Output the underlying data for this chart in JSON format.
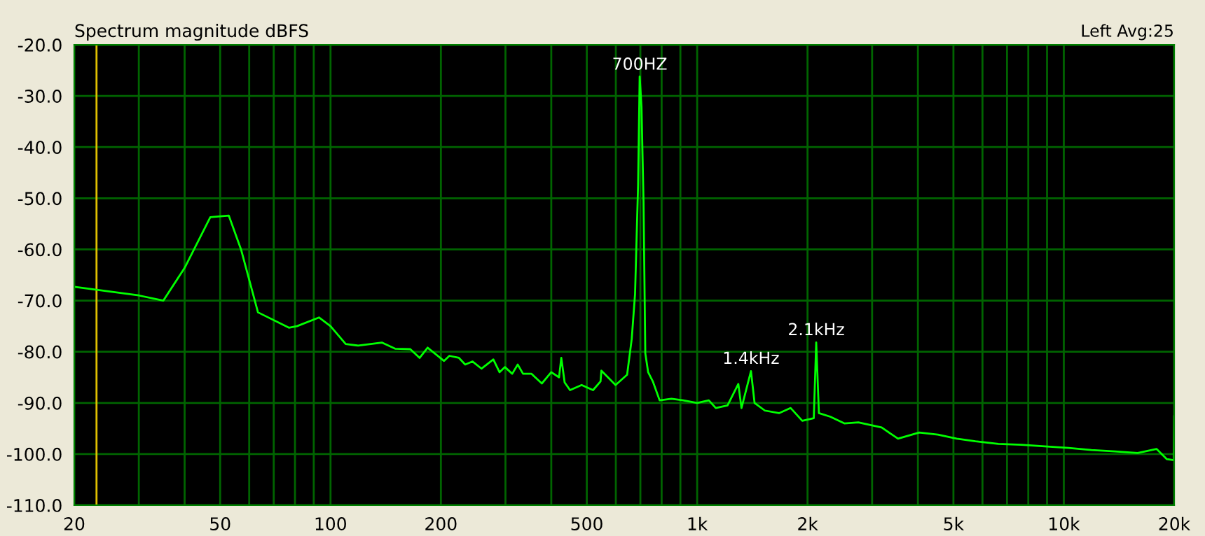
{
  "chart_data": {
    "type": "line",
    "title": "Spectrum magnitude dBFS",
    "annotations": [
      "Left Avg:25",
      {
        "text": "700HZ",
        "x": 697,
        "y": -26.3
      },
      {
        "text": "1.4kHz",
        "x": 1402,
        "y": -83.8
      },
      {
        "text": "2.1kHz",
        "x": 2112,
        "y": -78.2
      }
    ],
    "series": [
      {
        "color": "#00ff00",
        "x": [
          20,
          30,
          35,
          40,
          47,
          52.8,
          57,
          63.4,
          77,
          81,
          93,
          100,
          110,
          119,
          138,
          150,
          165,
          175,
          184,
          204,
          211,
          224,
          233,
          244,
          258,
          278,
          289,
          299,
          313,
          324,
          335,
          353,
          377,
          400,
          420,
          426,
          435,
          450,
          484,
          520,
          545,
          548,
          599,
          644,
          663,
          677,
          690,
          697,
          705,
          714,
          722,
          735,
          757,
          790,
          851,
          916,
          1000,
          1076,
          1124,
          1210,
          1295,
          1321,
          1402,
          1434,
          1530,
          1672,
          1799,
          1935,
          2080,
          2112,
          2148,
          2307,
          2520,
          2752,
          3185,
          3530,
          4033,
          4535,
          5103,
          5740,
          6630,
          7665,
          8860,
          10300,
          11900,
          13800,
          15900,
          17900,
          19100,
          19950,
          20000
        ],
        "values": [
          -67.3,
          -69.0,
          -70,
          -63.6,
          -53.7,
          -53.4,
          -60,
          -72.3,
          -75.3,
          -75,
          -73.3,
          -75,
          -78.5,
          -78.8,
          -78.2,
          -79.4,
          -79.5,
          -81.2,
          -79.2,
          -81.8,
          -80.8,
          -81.2,
          -82.5,
          -81.9,
          -83.3,
          -81.5,
          -84,
          -83,
          -84.3,
          -82.5,
          -84.3,
          -84.3,
          -86.2,
          -84,
          -85,
          -81.2,
          -86,
          -87.5,
          -86.5,
          -87.5,
          -85.8,
          -83.7,
          -86.5,
          -84.5,
          -77.5,
          -68.7,
          -47.4,
          -26.2,
          -32.2,
          -50.7,
          -80.3,
          -84,
          -85.8,
          -89.5,
          -89.2,
          -89.5,
          -90,
          -89.5,
          -91,
          -90.5,
          -86.3,
          -91,
          -83.8,
          -90,
          -91.5,
          -92,
          -91,
          -93.5,
          -93,
          -78.2,
          -92,
          -92.7,
          -94,
          -93.8,
          -94.8,
          -97,
          -95.8,
          -96.2,
          -97,
          -97.5,
          -98,
          -98.2,
          -98.5,
          -98.8,
          -99.2,
          -99.5,
          -99.8,
          -99,
          -101,
          -101.2,
          -92.6
        ]
      }
    ],
    "log": "x",
    "xlim": [
      20,
      20000
    ],
    "xticks": [
      20,
      {
        "value": 30,
        "label": null
      },
      {
        "value": 40,
        "label": null
      },
      50,
      {
        "value": 60,
        "label": null
      },
      {
        "value": 70,
        "label": null
      },
      {
        "value": 80,
        "label": null
      },
      {
        "value": 90,
        "label": null
      },
      100,
      200,
      {
        "value": 300,
        "label": null
      },
      {
        "value": 400,
        "label": null
      },
      500,
      {
        "value": 600,
        "label": null
      },
      {
        "value": 700,
        "label": null
      },
      {
        "value": 800,
        "label": null
      },
      {
        "value": 900,
        "label": null
      },
      {
        "value": 1000,
        "label": "1k"
      },
      {
        "value": 2000,
        "label": "2k"
      },
      {
        "value": 3000,
        "label": null
      },
      {
        "value": 4000,
        "label": null
      },
      {
        "value": 5000,
        "label": "5k"
      },
      {
        "value": 6000,
        "label": null
      },
      {
        "value": 7000,
        "label": null
      },
      {
        "value": 8000,
        "label": null
      },
      {
        "value": 9000,
        "label": null
      },
      {
        "value": 10000,
        "label": "10k"
      },
      {
        "value": 20000,
        "label": "20k"
      }
    ],
    "ylim": [
      -110,
      -20
    ],
    "yticks": [
      {
        "value": -110,
        "label": "-110.0"
      },
      {
        "value": -100,
        "label": "-100.0"
      },
      {
        "value": -90,
        "label": "-90.0"
      },
      {
        "value": -80,
        "label": "-80.0"
      },
      {
        "value": -70,
        "label": "-70.0"
      },
      {
        "value": -60,
        "label": "-60.0"
      },
      {
        "value": -50,
        "label": "-50.0"
      },
      {
        "value": -40,
        "label": "-40.0"
      },
      {
        "value": -30,
        "label": "-30.0"
      },
      {
        "value": -20,
        "label": "-20.0"
      }
    ],
    "grid": true,
    "ref_lines": [
      {
        "axis": "x",
        "value": 23,
        "color": "#e0c000"
      }
    ]
  }
}
